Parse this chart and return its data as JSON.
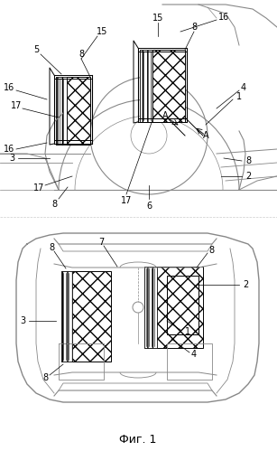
{
  "title": "",
  "caption": "Фиг. 1",
  "background_color": "#ffffff",
  "line_color": "#000000",
  "light_line_color": "#888888",
  "hatch_color": "#555555",
  "fig_width": 3.07,
  "fig_height": 4.99,
  "dpi": 100,
  "caption_fontsize": 9,
  "label_fontsize": 7
}
